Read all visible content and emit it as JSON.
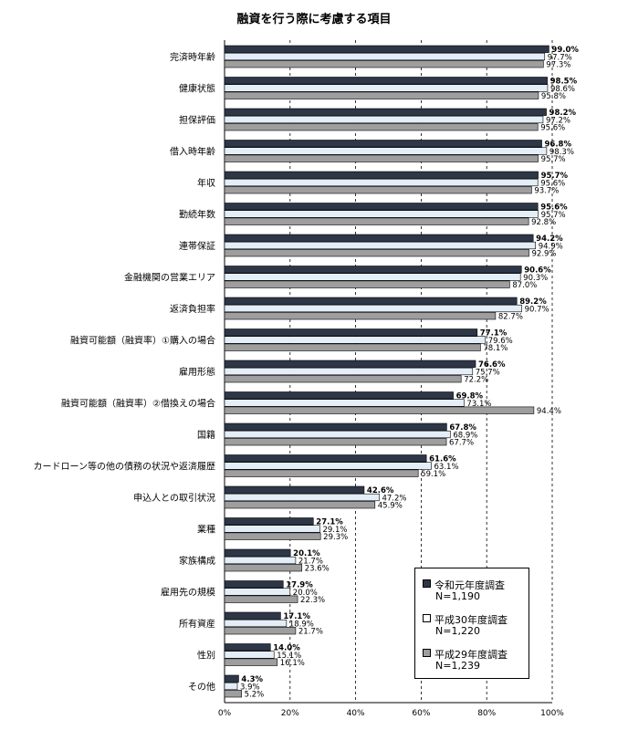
{
  "chart_data": {
    "type": "bar",
    "orientation": "horizontal",
    "title": "融資を行う際に考慮する項目",
    "categories": [
      "完済時年齢",
      "健康状態",
      "担保評価",
      "借入時年齢",
      "年収",
      "勤続年数",
      "連帯保証",
      "金融機関の営業エリア",
      "返済負担率",
      "融資可能額（融資率）①購入の場合",
      "雇用形態",
      "融資可能額（融資率）②借換えの場合",
      "国籍",
      "カードローン等の他の債務の状況や返済履歴",
      "申込人との取引状況",
      "業種",
      "家族構成",
      "雇用先の規模",
      "所有資産",
      "性別",
      "その他"
    ],
    "series": [
      {
        "name": "令和元年度調査",
        "n": "N=1,190",
        "color": "#2e3748",
        "values": [
          99.0,
          98.5,
          98.2,
          96.8,
          95.7,
          95.6,
          94.2,
          90.6,
          89.2,
          77.1,
          76.6,
          69.8,
          67.8,
          61.6,
          42.6,
          27.1,
          20.1,
          17.9,
          17.1,
          14.0,
          4.3
        ],
        "labels": [
          "99.0%",
          "98.5%",
          "98.2%",
          "96.8%",
          "95.7%",
          "95.6%",
          "94.2%",
          "90.6%",
          "89.2%",
          "77.1%",
          "76.6%",
          "69.8%",
          "67.8%",
          "61.6%",
          "42.6%",
          "27.1%",
          "20.1%",
          "17.9%",
          "17.1%",
          "14.0%",
          "4.3%"
        ]
      },
      {
        "name": "平成30年度調査",
        "n": "N=1,220",
        "color": "#e4eef8",
        "values": [
          97.7,
          98.6,
          97.2,
          98.3,
          95.6,
          95.7,
          94.9,
          90.3,
          90.7,
          79.6,
          75.7,
          73.1,
          68.9,
          63.1,
          47.2,
          29.1,
          21.7,
          20.0,
          18.9,
          15.1,
          3.9
        ],
        "labels": [
          "97.7%",
          "98.6%",
          "97.2%",
          "98.3%",
          "95.6%",
          "95.7%",
          "94.9%",
          "90.3%",
          "90.7%",
          "79.6%",
          "75.7%",
          "73.1%",
          "68.9%",
          "63.1%",
          "47.2%",
          "29.1%",
          "21.7%",
          "20.0%",
          "18.9%",
          "15.1%",
          "3.9%"
        ]
      },
      {
        "name": "平成29年度調査",
        "n": "N=1,239",
        "color": "#9e9e9e",
        "values": [
          97.3,
          95.8,
          95.6,
          95.7,
          93.7,
          92.8,
          92.9,
          87.0,
          82.7,
          78.1,
          72.2,
          94.4,
          67.7,
          59.1,
          45.9,
          29.3,
          23.6,
          22.3,
          21.7,
          16.1,
          5.2
        ],
        "labels": [
          "97.3%",
          "95.8%",
          "95.6%",
          "95.7%",
          "93.7%",
          "92.8%",
          "92.9%",
          "87.0%",
          "82.7%",
          "78.1%",
          "72.2%",
          "94.4%",
          "67.7%",
          "59.1%",
          "45.9%",
          "29.3%",
          "23.6%",
          "22.3%",
          "21.7%",
          "16.1%",
          "5.2%"
        ]
      }
    ],
    "xlim": [
      0,
      100
    ],
    "xticks": [
      "0%",
      "20%",
      "40%",
      "60%",
      "80%",
      "100%"
    ],
    "grid": "dashed vertical",
    "legend_placement": "bottom-right"
  }
}
